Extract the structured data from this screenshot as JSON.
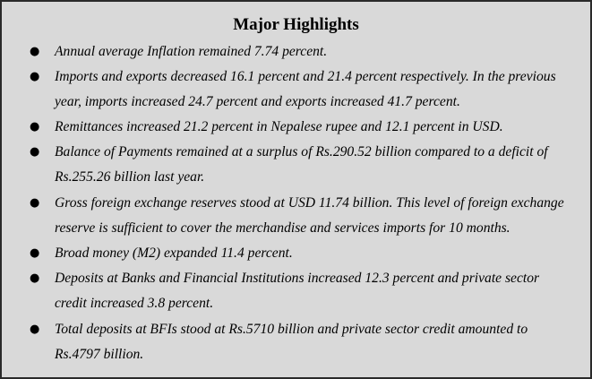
{
  "title": "Major Highlights",
  "highlights": [
    {
      "lines": [
        "Annual average Inflation remained 7.74 percent."
      ]
    },
    {
      "lines": [
        "Imports and exports decreased 16.1 percent and 21.4 percent respectively. In the previous",
        "year, imports increased 24.7 percent and exports increased 41.7 percent."
      ]
    },
    {
      "lines": [
        "Remittances increased 21.2 percent in Nepalese rupee and 12.1 percent in USD."
      ]
    },
    {
      "lines": [
        "Balance of Payments remained at a surplus of Rs.290.52 billion compared to a deficit of",
        "Rs.255.26 billion last year."
      ]
    },
    {
      "lines": [
        "Gross foreign exchange reserves stood at USD 11.74 billion. This level of foreign exchange",
        "reserve is sufficient to cover the merchandise and services imports for 10 months."
      ]
    },
    {
      "lines": [
        "Broad money (M2) expanded 11.4 percent."
      ]
    },
    {
      "lines": [
        "Deposits at Banks and Financial Institutions increased 12.3 percent and private sector",
        "credit increased 3.8 percent."
      ]
    },
    {
      "lines": [
        "Total deposits at BFIs stood at Rs.5710 billion and private sector credit amounted to",
        "Rs.4797 billion."
      ]
    }
  ]
}
